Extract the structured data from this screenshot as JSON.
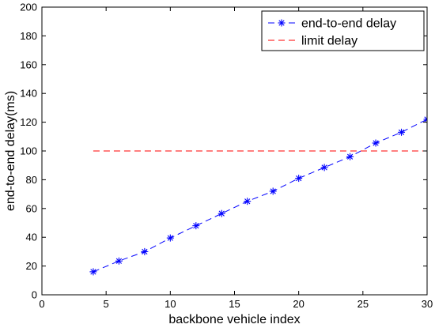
{
  "chart_data": {
    "type": "line",
    "title": "",
    "xlabel": "backbone vehicle index",
    "ylabel": "end-to-end delay(ms)",
    "xlim": [
      0,
      30
    ],
    "ylim": [
      0,
      200
    ],
    "xticks": [
      0,
      5,
      10,
      15,
      20,
      25,
      30
    ],
    "yticks": [
      0,
      20,
      40,
      60,
      80,
      100,
      120,
      140,
      160,
      180,
      200
    ],
    "grid": false,
    "legend_position": "top-right",
    "series": [
      {
        "name": "end-to-end delay",
        "color": "#0000ff",
        "line_style": "dashed",
        "marker": "asterisk",
        "x": [
          4,
          6,
          8,
          10,
          12,
          14,
          16,
          18,
          20,
          22,
          24,
          26,
          28,
          30
        ],
        "y": [
          16,
          23.5,
          30,
          39.5,
          48,
          56.5,
          65,
          72,
          81,
          88.5,
          96,
          105.5,
          113,
          122
        ]
      },
      {
        "name": "limit delay",
        "color": "#ff0000",
        "line_style": "dashed",
        "marker": "none",
        "x": [
          4,
          30
        ],
        "y": [
          100,
          100
        ]
      }
    ]
  }
}
